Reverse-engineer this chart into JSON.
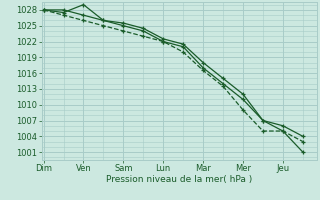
{
  "xlabel": "Pression niveau de la mer( hPa )",
  "bg_color": "#cce8e0",
  "grid_color": "#a8ccc8",
  "line_color": "#1a5c2a",
  "yticks": [
    1001,
    1004,
    1007,
    1010,
    1013,
    1016,
    1019,
    1022,
    1025,
    1028
  ],
  "ylim": [
    999.5,
    1029.5
  ],
  "xlim": [
    -0.05,
    6.85
  ],
  "xtick_positions": [
    0,
    1,
    2,
    3,
    4,
    5,
    6
  ],
  "xtick_labels": [
    "Dim",
    "Ven",
    "Sam",
    "Lun",
    "Mar",
    "Mer",
    "Jeu"
  ],
  "line1_x": [
    0,
    0.5,
    1.0,
    1.5,
    2.0,
    2.5,
    3.0,
    3.5,
    4.0,
    4.5,
    5.0,
    5.5,
    6.0,
    6.5
  ],
  "line1_y": [
    1028,
    1028,
    1027,
    1026,
    1025,
    1024,
    1022,
    1021,
    1017,
    1014,
    1011,
    1007,
    1005,
    1001
  ],
  "line2_x": [
    0,
    0.5,
    1.0,
    1.5,
    2.0,
    2.5,
    3.0,
    3.5,
    4.0,
    4.5,
    5.0,
    5.5,
    6.0,
    6.5
  ],
  "line2_y": [
    1028,
    1027.5,
    1029,
    1026,
    1025.5,
    1024.5,
    1022.5,
    1021.5,
    1018,
    1015,
    1012,
    1007,
    1006,
    1004
  ],
  "line3_x": [
    0,
    0.5,
    1.0,
    1.5,
    2.0,
    2.5,
    3.0,
    3.5,
    4.0,
    4.5,
    5.0,
    5.5,
    6.0,
    6.5
  ],
  "line3_y": [
    1028,
    1027,
    1026,
    1025,
    1024,
    1023,
    1022,
    1020,
    1016.5,
    1013.5,
    1009,
    1005,
    1005,
    1003
  ],
  "tick_fontsize": 6,
  "xlabel_fontsize": 6.5,
  "tick_color": "#1a5c2a"
}
